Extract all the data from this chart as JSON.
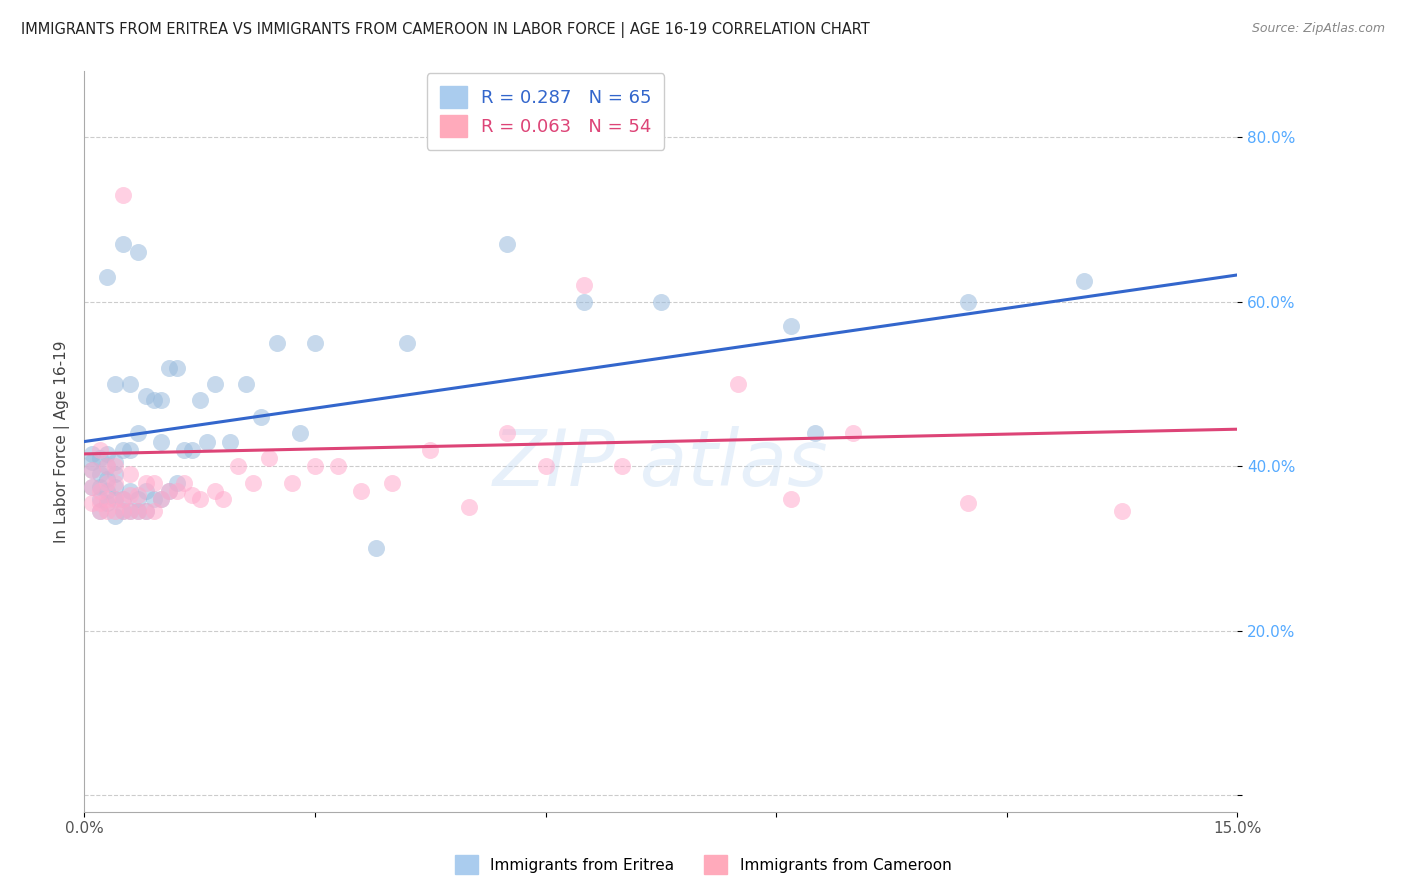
{
  "title": "IMMIGRANTS FROM ERITREA VS IMMIGRANTS FROM CAMEROON IN LABOR FORCE | AGE 16-19 CORRELATION CHART",
  "source": "Source: ZipAtlas.com",
  "ylabel": "In Labor Force | Age 16-19",
  "xlim": [
    0.0,
    0.15
  ],
  "ylim": [
    -0.02,
    0.88
  ],
  "plot_ylim": [
    0.0,
    0.88
  ],
  "eritrea_color": "#99bbdd",
  "cameroon_color": "#ffaacc",
  "eritrea_R": 0.287,
  "eritrea_N": 65,
  "cameroon_R": 0.063,
  "cameroon_N": 54,
  "eritrea_line_color": "#3366cc",
  "cameroon_line_color": "#dd4477",
  "ytick_color": "#55aaff",
  "grid_color": "#cccccc",
  "eritrea_points_x": [
    0.001,
    0.001,
    0.001,
    0.001,
    0.002,
    0.002,
    0.002,
    0.002,
    0.002,
    0.003,
    0.003,
    0.003,
    0.003,
    0.003,
    0.003,
    0.004,
    0.004,
    0.004,
    0.004,
    0.004,
    0.004,
    0.005,
    0.005,
    0.005,
    0.005,
    0.006,
    0.006,
    0.006,
    0.006,
    0.007,
    0.007,
    0.007,
    0.007,
    0.008,
    0.008,
    0.008,
    0.009,
    0.009,
    0.01,
    0.01,
    0.01,
    0.011,
    0.011,
    0.012,
    0.012,
    0.013,
    0.014,
    0.015,
    0.016,
    0.017,
    0.019,
    0.021,
    0.023,
    0.025,
    0.028,
    0.03,
    0.038,
    0.042,
    0.055,
    0.065,
    0.075,
    0.092,
    0.095,
    0.115,
    0.13
  ],
  "eritrea_points_y": [
    0.375,
    0.395,
    0.405,
    0.415,
    0.345,
    0.36,
    0.375,
    0.39,
    0.41,
    0.355,
    0.37,
    0.385,
    0.4,
    0.415,
    0.63,
    0.34,
    0.36,
    0.375,
    0.39,
    0.405,
    0.5,
    0.345,
    0.36,
    0.42,
    0.67,
    0.345,
    0.37,
    0.42,
    0.5,
    0.345,
    0.36,
    0.44,
    0.66,
    0.345,
    0.37,
    0.485,
    0.36,
    0.48,
    0.36,
    0.43,
    0.48,
    0.37,
    0.52,
    0.38,
    0.52,
    0.42,
    0.42,
    0.48,
    0.43,
    0.5,
    0.43,
    0.5,
    0.46,
    0.55,
    0.44,
    0.55,
    0.3,
    0.55,
    0.67,
    0.6,
    0.6,
    0.57,
    0.44,
    0.6,
    0.625
  ],
  "cameroon_points_x": [
    0.001,
    0.001,
    0.001,
    0.002,
    0.002,
    0.002,
    0.002,
    0.003,
    0.003,
    0.003,
    0.003,
    0.004,
    0.004,
    0.004,
    0.004,
    0.005,
    0.005,
    0.005,
    0.006,
    0.006,
    0.006,
    0.007,
    0.007,
    0.008,
    0.008,
    0.009,
    0.009,
    0.01,
    0.011,
    0.012,
    0.013,
    0.014,
    0.015,
    0.017,
    0.018,
    0.02,
    0.022,
    0.024,
    0.027,
    0.03,
    0.033,
    0.036,
    0.04,
    0.045,
    0.05,
    0.055,
    0.06,
    0.065,
    0.07,
    0.085,
    0.092,
    0.1,
    0.115,
    0.135
  ],
  "cameroon_points_y": [
    0.355,
    0.375,
    0.395,
    0.345,
    0.355,
    0.37,
    0.42,
    0.345,
    0.36,
    0.38,
    0.4,
    0.345,
    0.36,
    0.38,
    0.4,
    0.345,
    0.36,
    0.73,
    0.345,
    0.365,
    0.39,
    0.345,
    0.365,
    0.345,
    0.38,
    0.345,
    0.38,
    0.36,
    0.37,
    0.37,
    0.38,
    0.365,
    0.36,
    0.37,
    0.36,
    0.4,
    0.38,
    0.41,
    0.38,
    0.4,
    0.4,
    0.37,
    0.38,
    0.42,
    0.35,
    0.44,
    0.4,
    0.62,
    0.4,
    0.5,
    0.36,
    0.44,
    0.355,
    0.345
  ]
}
